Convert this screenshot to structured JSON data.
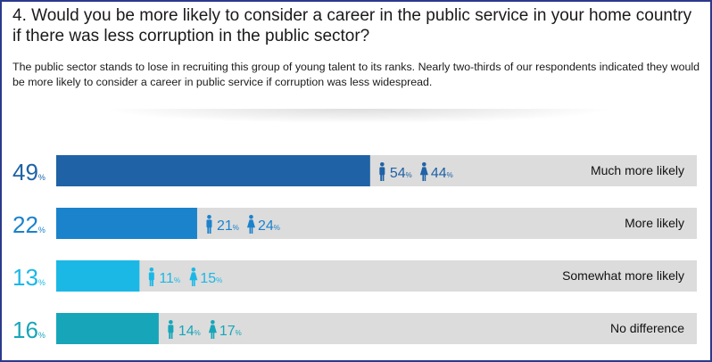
{
  "header": {
    "question": "4. Would you be more likely to consider a career in the public service in your home country if there was less corruption in the public sector?",
    "intro": "The public sector stands to lose in recruiting this group of young talent to its ranks. Nearly two-thirds of our respondents indicated they would be more likely to consider a career in public service if corruption was less widespread."
  },
  "chart_data": {
    "type": "bar",
    "orientation": "horizontal",
    "categories": [
      "Much more likely",
      "More likely",
      "Somewhat more likely",
      "No difference"
    ],
    "values": [
      49,
      22,
      13,
      16
    ],
    "value_suffix": "%",
    "male": [
      54,
      21,
      11,
      14
    ],
    "female": [
      44,
      24,
      15,
      17
    ],
    "xlim": [
      0,
      100
    ],
    "colors": [
      "#1f62a6",
      "#1b82cc",
      "#1bb8e6",
      "#17a6b9"
    ],
    "track_color": "#dcdcdc",
    "icons": {
      "male": "male-person-icon",
      "female": "female-person-icon"
    }
  }
}
